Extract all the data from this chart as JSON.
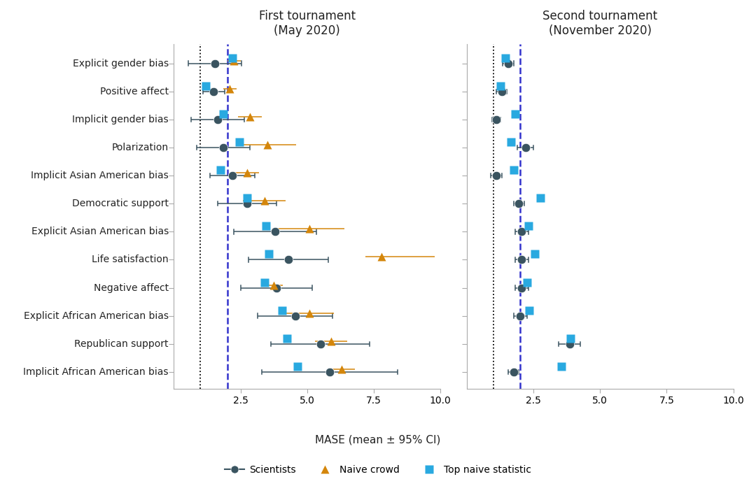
{
  "categories": [
    "Explicit gender bias",
    "Positive affect",
    "Implicit gender bias",
    "Polarization",
    "Implicit Asian American bias",
    "Democratic support",
    "Explicit Asian American bias",
    "Life satisfaction",
    "Negative affect",
    "Explicit African American bias",
    "Republican support",
    "Implicit African American bias"
  ],
  "panel1_title": "First tournament\n(May 2020)",
  "panel2_title": "Second tournament\n(November 2020)",
  "xlabel": "MASE (mean ± 95% CI)",
  "dotted_line_x": 1.0,
  "dashed_line_x": 2.0,
  "scientists_color": "#3a5460",
  "naive_color": "#d4860b",
  "top_naive_color": "#29a9e0",
  "panel1": {
    "scientists": {
      "means": [
        1.55,
        1.5,
        1.65,
        1.85,
        2.2,
        2.75,
        3.8,
        4.3,
        3.85,
        4.55,
        5.5,
        5.85
      ],
      "ci_low": [
        0.55,
        1.1,
        0.65,
        0.85,
        1.35,
        1.65,
        2.25,
        2.8,
        2.5,
        3.15,
        3.65,
        3.3
      ],
      "ci_high": [
        2.55,
        1.9,
        2.65,
        2.85,
        3.05,
        3.85,
        5.35,
        5.8,
        5.2,
        5.95,
        7.35,
        8.4
      ]
    },
    "naive": {
      "means": [
        2.25,
        2.1,
        2.85,
        3.5,
        2.75,
        3.4,
        5.1,
        7.8,
        3.75,
        5.1,
        5.9,
        6.3
      ],
      "ci_low": [
        2.0,
        1.85,
        2.4,
        2.4,
        2.3,
        2.6,
        3.8,
        7.2,
        3.4,
        4.2,
        5.3,
        5.8
      ],
      "ci_high": [
        2.5,
        2.35,
        3.3,
        4.6,
        3.2,
        4.2,
        6.4,
        9.8,
        4.1,
        6.0,
        6.5,
        6.8
      ]
    },
    "top_naive": {
      "values": [
        2.2,
        1.2,
        1.85,
        2.45,
        1.75,
        2.75,
        3.45,
        3.55,
        3.4,
        4.05,
        4.25,
        4.65
      ]
    }
  },
  "panel2": {
    "scientists": {
      "means": [
        1.55,
        1.3,
        1.1,
        2.2,
        1.1,
        1.95,
        2.05,
        2.05,
        2.05,
        2.0,
        3.85,
        1.75
      ],
      "ci_low": [
        1.35,
        1.1,
        0.95,
        1.9,
        0.9,
        1.75,
        1.8,
        1.8,
        1.8,
        1.75,
        3.45,
        1.55
      ],
      "ci_high": [
        1.75,
        1.5,
        1.25,
        2.5,
        1.3,
        2.15,
        2.3,
        2.3,
        2.3,
        2.25,
        4.25,
        1.95
      ]
    },
    "top_naive": {
      "values": [
        1.45,
        1.25,
        1.8,
        1.65,
        1.75,
        2.75,
        2.3,
        2.55,
        2.25,
        2.35,
        3.9,
        3.55
      ]
    }
  },
  "background_color": "#ffffff",
  "title_fontsize": 12,
  "label_fontsize": 10,
  "tick_fontsize": 10
}
